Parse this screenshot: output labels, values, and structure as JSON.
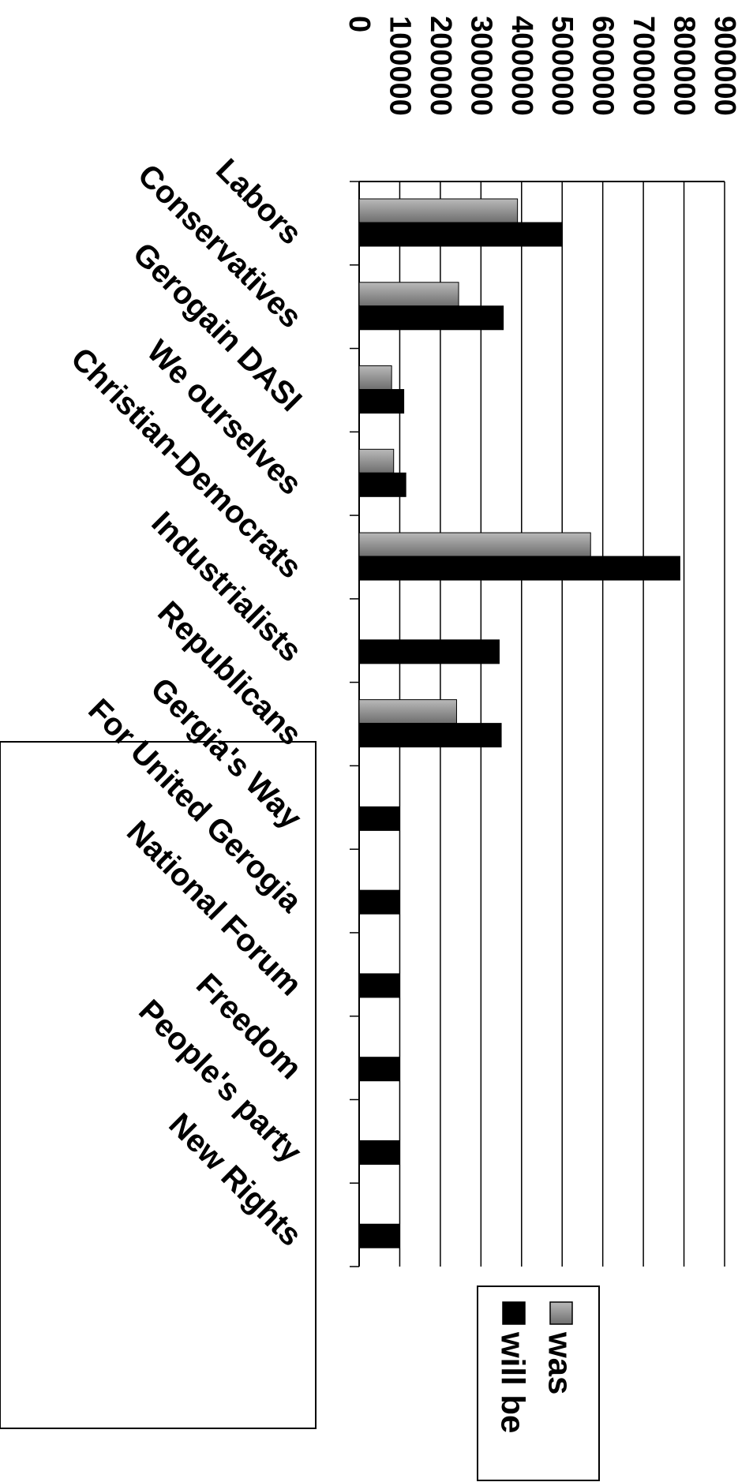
{
  "chart_data": {
    "type": "bar",
    "orientation": "rotated",
    "categories": [
      "Labors",
      "Conservatives",
      "Gerogain DASI",
      "We ourselves",
      "Christian-Democrats",
      "Industrialists",
      "Republicans",
      "Gergia's Way",
      "For United Gerogia",
      "National Forum",
      "Freedom",
      "People's party",
      "New Rights"
    ],
    "series": [
      {
        "name": "was",
        "values": [
          390000,
          245000,
          80000,
          85000,
          570000,
          null,
          240000,
          null,
          null,
          null,
          null,
          null,
          null
        ]
      },
      {
        "name": "will be",
        "values": [
          500000,
          355000,
          110000,
          115000,
          790000,
          345000,
          350000,
          100000,
          100000,
          100000,
          100000,
          100000,
          100000
        ]
      }
    ],
    "ylim": [
      0,
      900000
    ],
    "yticks": [
      "0",
      "100000",
      "200000",
      "300000",
      "400000",
      "500000",
      "600000",
      "700000",
      "800000",
      "900000"
    ],
    "grid": true,
    "legend_position": "bottom-right",
    "colors": {
      "was": "#8c8c8c",
      "will be": "#000000"
    }
  }
}
